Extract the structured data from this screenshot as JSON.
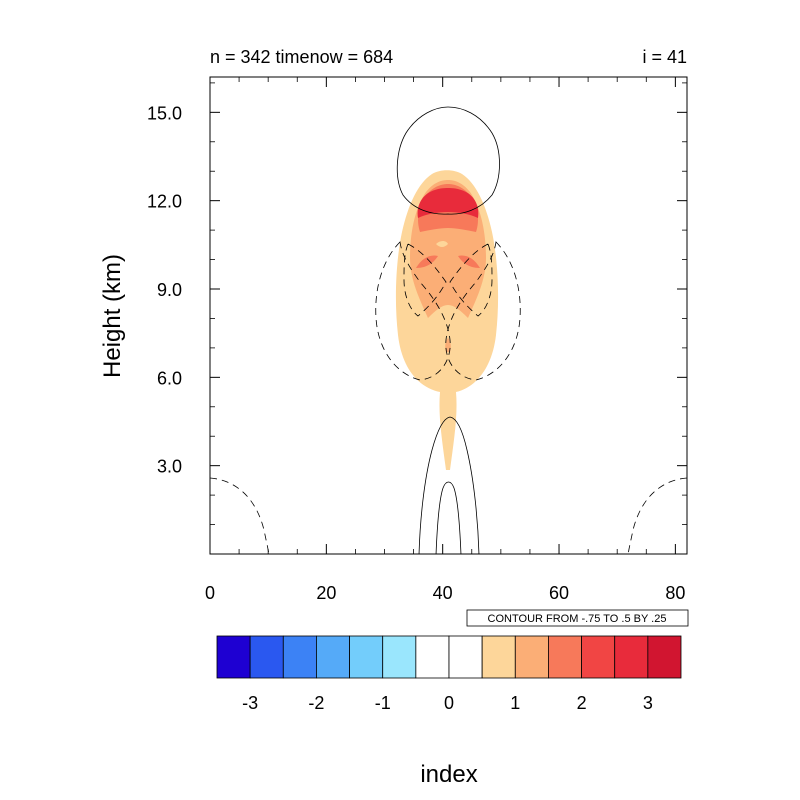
{
  "chart_data": {
    "type": "heatmap",
    "title_left": "n = 342 timenow = 684",
    "title_right": "i = 41",
    "xlabel": "index",
    "ylabel": "Height (km)",
    "xlim": [
      0,
      82
    ],
    "ylim": [
      0,
      16.2
    ],
    "x_ticks": [
      0,
      20,
      40,
      60,
      80
    ],
    "x_tick_labels": [
      "0",
      "20",
      "40",
      "60",
      "80"
    ],
    "y_ticks": [
      3.0,
      6.0,
      9.0,
      12.0,
      15.0
    ],
    "y_tick_labels": [
      "3.0",
      "6.0",
      "9.0",
      "12.0",
      "15.0"
    ],
    "contour_info": "CONTOUR FROM -.75 TO .5 BY .25",
    "colorbar": {
      "colors": [
        "#1e00d2",
        "#2a58f0",
        "#3c82f5",
        "#55aaf8",
        "#73cdfb",
        "#9ae6fd",
        "#ffffff",
        "#ffffff",
        "#fdd69a",
        "#fbae76",
        "#f7795a",
        "#f14544",
        "#e82b3b",
        "#d11530"
      ],
      "tick_labels": [
        "-3",
        "-2",
        "-1",
        "0",
        "1",
        "2",
        "3"
      ]
    },
    "shaded_field": {
      "description_levels": [
        1,
        2,
        3
      ],
      "plume_center_x": 41,
      "core_max_height_km": 12.0,
      "max_value_approx": 3.0
    },
    "contour_lines": [
      {
        "style": "solid",
        "label": "positive",
        "region": "cap",
        "x_range": [
          32.5,
          49.5
        ],
        "y_range": [
          11.7,
          15.2
        ]
      },
      {
        "style": "solid",
        "label": "positive",
        "region": "lower-column-outer",
        "x_range": [
          36,
          46
        ],
        "y_range": [
          0,
          4.9
        ]
      },
      {
        "style": "solid",
        "label": "positive",
        "region": "lower-column-inner",
        "x_range": [
          38.5,
          43.5
        ],
        "y_range": [
          0,
          2.7
        ]
      },
      {
        "style": "dashed",
        "label": "negative",
        "region": "left-lobe",
        "x_range": [
          28.5,
          38
        ],
        "y_range": [
          6.2,
          10.7
        ]
      },
      {
        "style": "dashed",
        "label": "negative",
        "region": "right-lobe",
        "x_range": [
          44,
          53.5
        ],
        "y_range": [
          6.2,
          10.7
        ]
      },
      {
        "style": "dashed",
        "label": "negative",
        "region": "bottom-left",
        "x_range": [
          0,
          10.5
        ],
        "y_range": [
          0,
          2.8
        ]
      },
      {
        "style": "dashed",
        "label": "negative",
        "region": "bottom-right",
        "x_range": [
          71.5,
          82
        ],
        "y_range": [
          0,
          2.8
        ]
      }
    ]
  }
}
